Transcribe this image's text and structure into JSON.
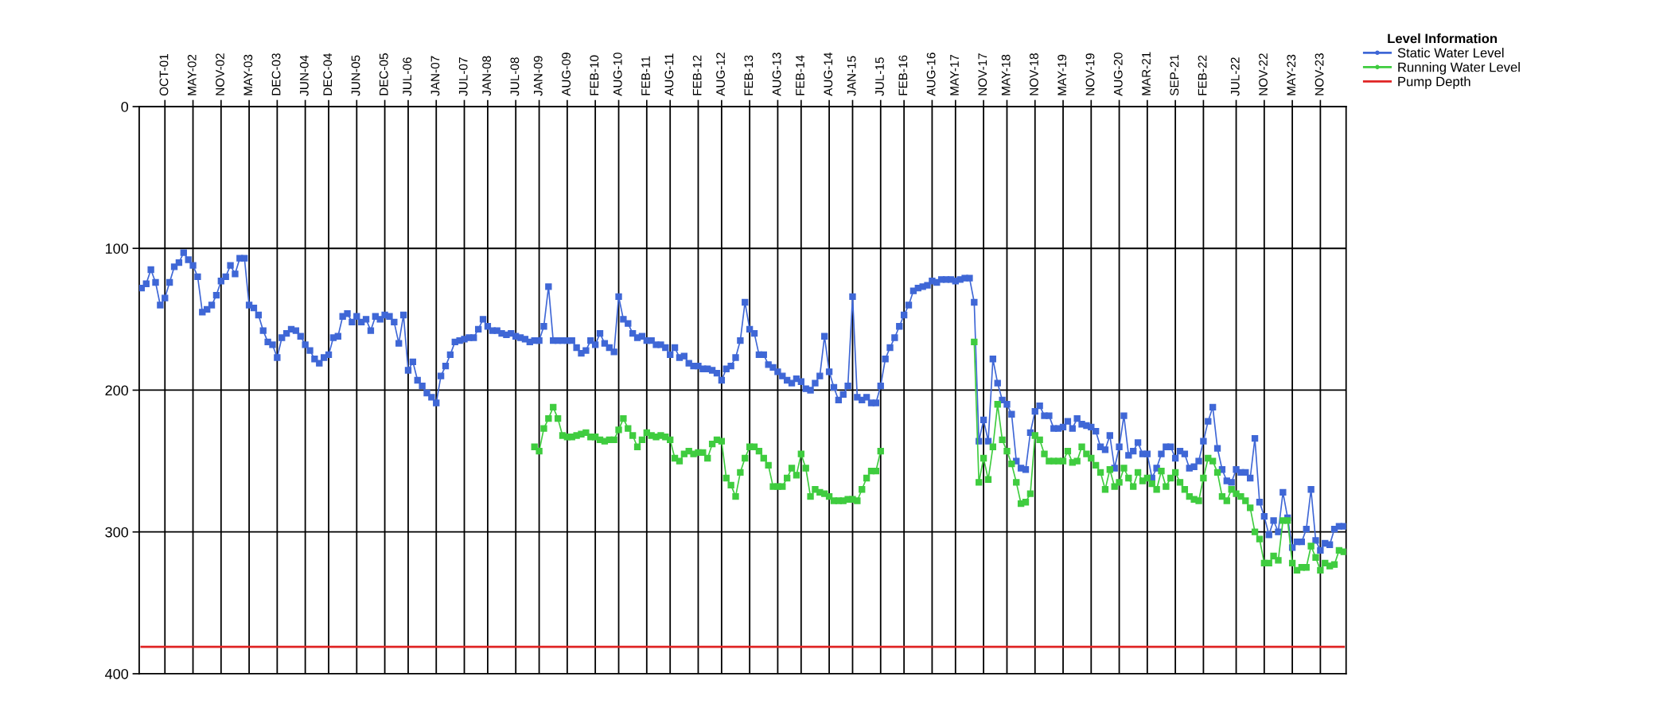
{
  "chart_data": {
    "type": "line",
    "legend_title": "Level Information",
    "legend": "top right",
    "grid": true,
    "line_style": "solid",
    "ylim": [
      400,
      0
    ],
    "yticks": [
      0,
      100,
      200,
      300,
      400
    ],
    "categories": [
      null,
      null,
      null,
      null,
      null,
      "OCT-01",
      null,
      null,
      null,
      null,
      null,
      "MAY-02",
      null,
      null,
      null,
      null,
      null,
      "NOV-02",
      null,
      null,
      null,
      null,
      null,
      "MAY-03",
      null,
      null,
      null,
      null,
      null,
      "DEC-03",
      null,
      null,
      null,
      null,
      null,
      "JUN-04",
      null,
      null,
      null,
      null,
      "DEC-04",
      null,
      null,
      null,
      null,
      null,
      "JUN-05",
      null,
      null,
      null,
      null,
      null,
      "DEC-05",
      null,
      null,
      null,
      null,
      "JUL-06",
      null,
      null,
      null,
      null,
      null,
      "JAN-07",
      null,
      null,
      null,
      null,
      null,
      "JUL-07",
      null,
      null,
      null,
      null,
      "JAN-08",
      null,
      null,
      null,
      null,
      null,
      "JUL-08",
      null,
      null,
      null,
      null,
      "JAN-09",
      null,
      null,
      null,
      null,
      null,
      "AUG-09",
      null,
      null,
      null,
      null,
      null,
      "FEB-10",
      null,
      null,
      null,
      null,
      "AUG-10",
      null,
      null,
      null,
      null,
      null,
      "FEB-11",
      null,
      null,
      null,
      null,
      "AUG-11",
      null,
      null,
      null,
      null,
      null,
      "FEB-12",
      null,
      null,
      null,
      null,
      "AUG-12",
      null,
      null,
      null,
      null,
      null,
      "FEB-13",
      null,
      null,
      null,
      null,
      null,
      "AUG-13",
      null,
      null,
      null,
      null,
      "FEB-14",
      null,
      null,
      null,
      null,
      null,
      "AUG-14",
      null,
      null,
      null,
      null,
      "JAN-15",
      null,
      null,
      null,
      null,
      null,
      "JUL-15",
      null,
      null,
      null,
      null,
      "FEB-16",
      null,
      null,
      null,
      null,
      null,
      "AUG-16",
      null,
      null,
      null,
      null,
      "MAY-17",
      null,
      null,
      null,
      null,
      null,
      "NOV-17",
      null,
      null,
      null,
      null,
      "MAY-18",
      null,
      null,
      null,
      null,
      null,
      "NOV-18",
      null,
      null,
      null,
      null,
      null,
      "MAY-19",
      null,
      null,
      null,
      null,
      null,
      "NOV-19",
      null,
      null,
      null,
      null,
      null,
      "AUG-20",
      null,
      null,
      null,
      null,
      null,
      "MAR-21",
      null,
      null,
      null,
      null,
      null,
      "SEP-21",
      null,
      null,
      null,
      null,
      null,
      "FEB-22",
      null,
      null,
      null,
      null,
      null,
      null,
      "JUL-22",
      null,
      null,
      null,
      null,
      null,
      "NOV-22",
      null,
      null,
      null,
      null,
      null,
      "MAY-23",
      null,
      null,
      null,
      null,
      null,
      "NOV-23",
      null,
      null,
      null,
      null,
      null
    ],
    "series": [
      {
        "name": "Static Water Level",
        "color": "#3f67d6",
        "marker": "square",
        "values": [
          128,
          125,
          115,
          124,
          140,
          135,
          124,
          113,
          110,
          103,
          108,
          112,
          120,
          145,
          143,
          140,
          133,
          123,
          120,
          112,
          118,
          107,
          107,
          140,
          142,
          147,
          158,
          166,
          168,
          177,
          163,
          160,
          157,
          158,
          162,
          168,
          172,
          178,
          181,
          177,
          175,
          163,
          162,
          148,
          146,
          152,
          148,
          152,
          150,
          158,
          148,
          150,
          147,
          148,
          152,
          167,
          147,
          186,
          180,
          193,
          197,
          202,
          205,
          209,
          190,
          183,
          175,
          166,
          165,
          164,
          163,
          163,
          157,
          150,
          155,
          158,
          158,
          160,
          161,
          160,
          162,
          163,
          164,
          166,
          165,
          165,
          155,
          127,
          165,
          165,
          165,
          165,
          165,
          170,
          174,
          172,
          165,
          168,
          160,
          167,
          170,
          173,
          134,
          150,
          153,
          160,
          163,
          162,
          165,
          165,
          168,
          168,
          170,
          175,
          170,
          177,
          176,
          181,
          183,
          183,
          185,
          185,
          186,
          188,
          193,
          185,
          183,
          177,
          165,
          138,
          157,
          160,
          175,
          175,
          182,
          184,
          187,
          190,
          193,
          195,
          192,
          194,
          199,
          200,
          195,
          190,
          162,
          187,
          198,
          207,
          203,
          197,
          134,
          205,
          207,
          205,
          209,
          209,
          197,
          178,
          170,
          163,
          155,
          147,
          140,
          130,
          128,
          127,
          126,
          123,
          124,
          122,
          122,
          122,
          123,
          122,
          121,
          121,
          138,
          236,
          221,
          236,
          178,
          195,
          207,
          210,
          217,
          250,
          255,
          256,
          230,
          215,
          211,
          218,
          218,
          227,
          227,
          226,
          222,
          227,
          220,
          224,
          225,
          226,
          229,
          240,
          242,
          232,
          255,
          240,
          218,
          246,
          243,
          237,
          245,
          245,
          262,
          255,
          245,
          240,
          240,
          248,
          243,
          245,
          255,
          254,
          250,
          236,
          222,
          212,
          241,
          256,
          264,
          265,
          256,
          258,
          258,
          262,
          234,
          279,
          289,
          302,
          292,
          300,
          272,
          290,
          311,
          307,
          307,
          298,
          270,
          306,
          313,
          308,
          309,
          298,
          296,
          296
        ]
      },
      {
        "name": "Running Water Level",
        "color": "#3fcc3f",
        "marker": "square",
        "values": [
          null,
          null,
          null,
          null,
          null,
          null,
          null,
          null,
          null,
          null,
          null,
          null,
          null,
          null,
          null,
          null,
          null,
          null,
          null,
          null,
          null,
          null,
          null,
          null,
          null,
          null,
          null,
          null,
          null,
          null,
          null,
          null,
          null,
          null,
          null,
          null,
          null,
          null,
          null,
          null,
          null,
          null,
          null,
          null,
          null,
          null,
          null,
          null,
          null,
          null,
          null,
          null,
          null,
          null,
          null,
          null,
          null,
          null,
          null,
          null,
          null,
          null,
          null,
          null,
          null,
          null,
          null,
          null,
          null,
          null,
          null,
          null,
          null,
          null,
          null,
          null,
          null,
          null,
          null,
          null,
          null,
          null,
          null,
          null,
          240,
          243,
          227,
          220,
          212,
          220,
          232,
          233,
          233,
          232,
          231,
          230,
          233,
          233,
          235,
          236,
          235,
          235,
          228,
          220,
          227,
          232,
          240,
          235,
          230,
          232,
          233,
          232,
          233,
          235,
          248,
          250,
          245,
          243,
          245,
          244,
          244,
          248,
          238,
          235,
          236,
          262,
          267,
          275,
          258,
          248,
          240,
          240,
          243,
          248,
          253,
          268,
          268,
          268,
          262,
          255,
          260,
          245,
          255,
          275,
          270,
          272,
          273,
          275,
          278,
          278,
          278,
          277,
          277,
          278,
          270,
          262,
          257,
          257,
          243,
          null,
          null,
          null,
          null,
          null,
          null,
          null,
          null,
          null,
          null,
          null,
          null,
          null,
          null,
          null,
          null,
          null,
          null,
          null,
          166,
          265,
          248,
          263,
          240,
          210,
          235,
          243,
          252,
          265,
          280,
          279,
          273,
          232,
          235,
          245,
          250,
          250,
          250,
          250,
          243,
          251,
          250,
          240,
          245,
          248,
          253,
          258,
          270,
          256,
          268,
          265,
          255,
          262,
          268,
          258,
          264,
          262,
          266,
          270,
          257,
          268,
          262,
          258,
          265,
          270,
          275,
          277,
          278,
          262,
          248,
          250,
          258,
          275,
          278,
          270,
          273,
          275,
          278,
          283,
          300,
          305,
          322,
          322,
          317,
          320,
          292,
          292,
          322,
          327,
          325,
          325,
          310,
          318,
          327,
          322,
          324,
          323,
          313,
          314
        ]
      },
      {
        "name": "Pump Depth",
        "color": "#e02424",
        "marker": "none",
        "values": [
          381,
          381,
          381,
          381,
          381,
          381,
          381,
          381,
          381,
          381,
          381,
          381,
          381,
          381,
          381,
          381,
          381,
          381,
          381,
          381,
          381,
          381,
          381,
          381,
          381,
          381,
          381,
          381,
          381,
          381,
          381,
          381,
          381,
          381,
          381,
          381,
          381,
          381,
          381,
          381,
          381,
          381,
          381,
          381,
          381,
          381,
          381,
          381,
          381,
          381,
          381,
          381,
          381,
          381,
          381,
          381,
          381,
          381,
          381,
          381,
          381,
          381,
          381,
          381,
          381,
          381,
          381,
          381,
          381,
          381,
          381,
          381,
          381,
          381,
          381,
          381,
          381,
          381,
          381,
          381,
          381,
          381,
          381,
          381,
          381,
          381,
          381,
          381,
          381,
          381,
          381,
          381,
          381,
          381,
          381,
          381,
          381,
          381,
          381,
          381,
          381,
          381,
          381,
          381,
          381,
          381,
          381,
          381,
          381,
          381,
          381,
          381,
          381,
          381,
          381,
          381,
          381,
          381,
          381,
          381,
          381,
          381,
          381,
          381,
          381,
          381,
          381,
          381,
          381,
          381,
          381,
          381,
          381,
          381,
          381,
          381,
          381,
          381,
          381,
          381,
          381,
          381,
          381,
          381,
          381,
          381,
          381,
          381,
          381,
          381,
          381,
          381,
          381,
          381,
          381,
          381,
          381,
          381,
          381,
          381,
          381,
          381,
          381,
          381,
          381,
          381,
          381,
          381,
          381,
          381,
          381,
          381,
          381,
          381,
          381,
          381,
          381,
          381,
          381,
          381,
          381,
          381,
          381,
          381,
          381,
          381,
          381,
          381,
          381,
          381,
          381,
          381,
          381,
          381,
          381,
          381,
          381,
          381,
          381,
          381,
          381,
          381,
          381,
          381,
          381,
          381,
          381,
          381,
          381,
          381,
          381,
          381,
          381,
          381,
          381,
          381,
          381,
          381,
          381,
          381,
          381,
          381,
          381,
          381,
          381,
          381,
          381,
          381,
          381,
          381,
          381,
          381,
          381,
          381,
          381,
          381,
          381,
          381,
          381,
          381,
          381,
          381,
          381,
          381,
          381,
          381,
          381,
          381,
          381,
          381,
          381,
          381,
          381,
          381,
          381,
          381,
          381,
          381
        ]
      }
    ]
  }
}
